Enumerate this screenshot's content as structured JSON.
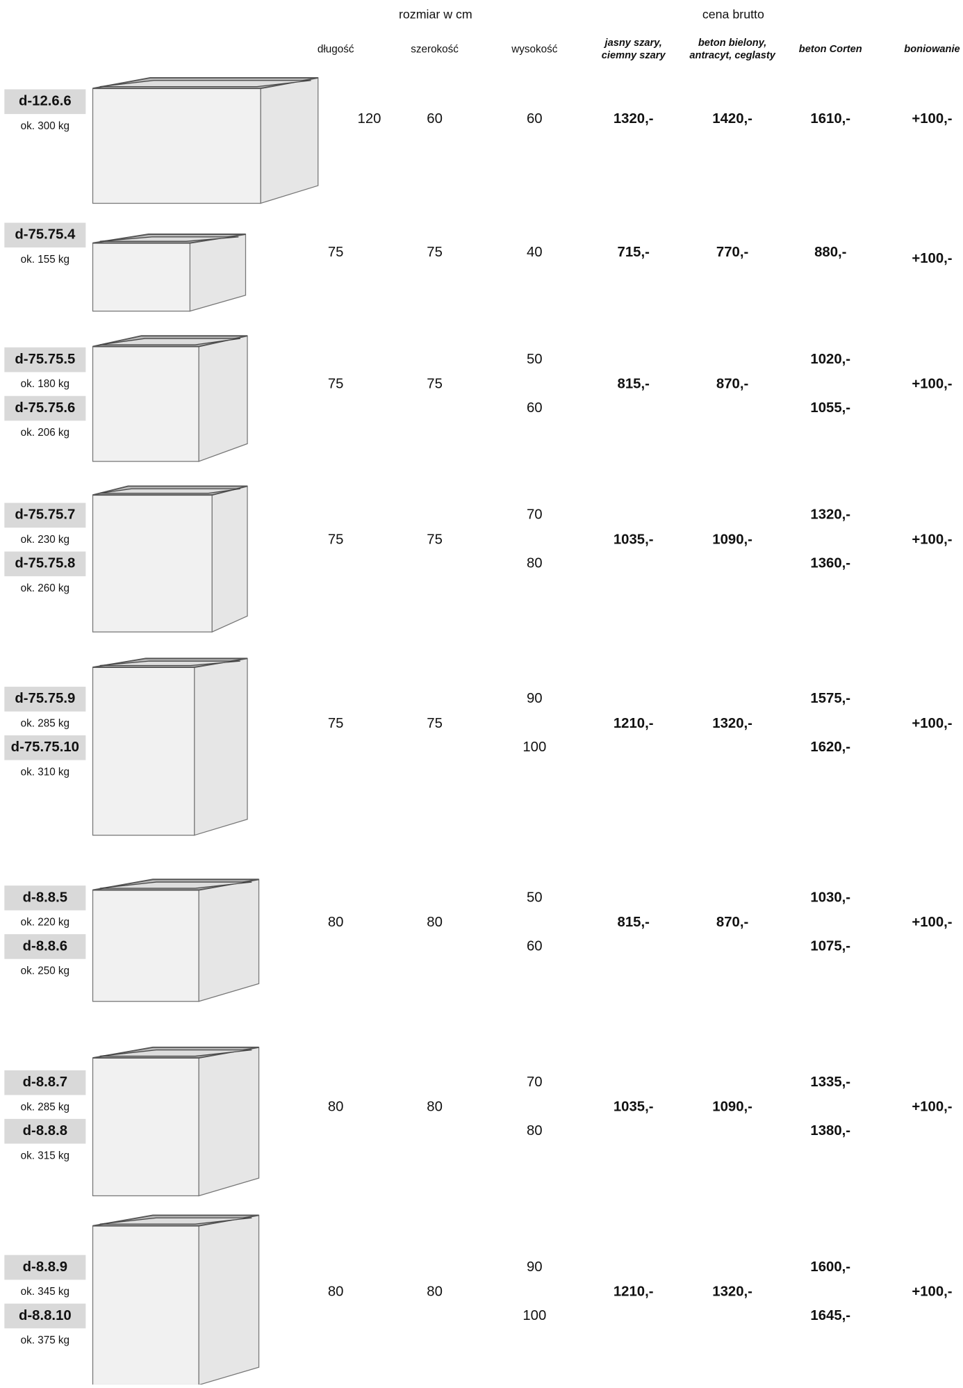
{
  "header": {
    "size_group": "rozmiar w cm",
    "price_group": "cena brutto"
  },
  "columns": [
    [
      "długość"
    ],
    [
      "szerokość"
    ],
    [
      "wysokość"
    ],
    [
      "jasny szary,",
      "ciemny szary"
    ],
    [
      "beton bielony,",
      "antracyt, ceglasty"
    ],
    [
      "beton Corten"
    ],
    [
      "boniowanie"
    ]
  ],
  "rows": [
    {
      "models": [
        {
          "code": "d-12.6.6",
          "weight": "ok. 300 kg"
        }
      ],
      "length": 120,
      "width": 60,
      "heights": [
        60
      ],
      "price_light": "1320,-",
      "price_white": "1420,-",
      "corten": [
        "1610,-"
      ],
      "bon": "+100,-"
    },
    {
      "models": [
        {
          "code": "d-75.75.4",
          "weight": "ok. 155 kg"
        }
      ],
      "length": 75,
      "width": 75,
      "heights": [
        40
      ],
      "price_light": "715,-",
      "price_white": "770,-",
      "corten": [
        "880,-"
      ],
      "bon": "+100,-"
    },
    {
      "models": [
        {
          "code": "d-75.75.5",
          "weight": "ok. 180 kg"
        },
        {
          "code": "d-75.75.6",
          "weight": "ok. 206 kg"
        }
      ],
      "length": 75,
      "width": 75,
      "heights": [
        50,
        60
      ],
      "price_light": "815,-",
      "price_white": "870,-",
      "corten": [
        "1020,-",
        "1055,-"
      ],
      "bon": "+100,-"
    },
    {
      "models": [
        {
          "code": "d-75.75.7",
          "weight": "ok. 230 kg"
        },
        {
          "code": "d-75.75.8",
          "weight": "ok. 260 kg"
        }
      ],
      "length": 75,
      "width": 75,
      "heights": [
        70,
        80
      ],
      "price_light": "1035,-",
      "price_white": "1090,-",
      "corten": [
        "1320,-",
        "1360,-"
      ],
      "bon": "+100,-"
    },
    {
      "models": [
        {
          "code": "d-75.75.9",
          "weight": "ok. 285 kg"
        },
        {
          "code": "d-75.75.10",
          "weight": "ok. 310 kg"
        }
      ],
      "length": 75,
      "width": 75,
      "heights": [
        90,
        100
      ],
      "price_light": "1210,-",
      "price_white": "1320,-",
      "corten": [
        "1575,-",
        "1620,-"
      ],
      "bon": "+100,-"
    },
    {
      "models": [
        {
          "code": "d-8.8.5",
          "weight": "ok. 220 kg"
        },
        {
          "code": "d-8.8.6",
          "weight": "ok. 250 kg"
        }
      ],
      "length": 80,
      "width": 80,
      "heights": [
        50,
        60
      ],
      "price_light": "815,-",
      "price_white": "870,-",
      "corten": [
        "1030,-",
        "1075,-"
      ],
      "bon": "+100,-"
    },
    {
      "models": [
        {
          "code": "d-8.8.7",
          "weight": "ok. 285 kg"
        },
        {
          "code": "d-8.8.8",
          "weight": "ok. 315 kg"
        }
      ],
      "length": 80,
      "width": 80,
      "heights": [
        70,
        80
      ],
      "price_light": "1035,-",
      "price_white": "1090,-",
      "corten": [
        "1335,-",
        "1380,-"
      ],
      "bon": "+100,-"
    },
    {
      "models": [
        {
          "code": "d-8.8.9",
          "weight": "ok. 345 kg"
        },
        {
          "code": "d-8.8.10",
          "weight": "ok. 375 kg"
        }
      ],
      "length": 80,
      "width": 80,
      "heights": [
        90,
        100
      ],
      "price_light": "1210,-",
      "price_white": "1320,-",
      "corten": [
        "1600,-",
        "1645,-"
      ],
      "bon": "+100,-"
    }
  ]
}
